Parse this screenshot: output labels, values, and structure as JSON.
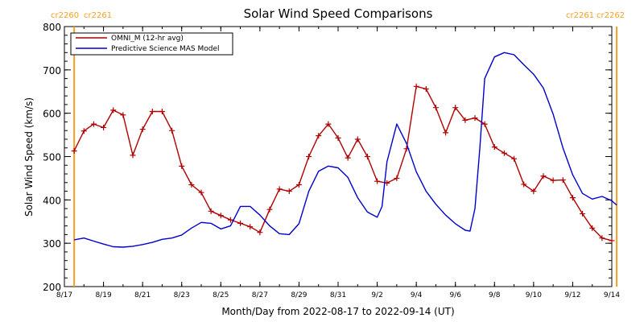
{
  "chart_data": {
    "type": "line",
    "title": "Solar Wind Speed Comparisons",
    "xlabel": "Month/Day from 2022-08-17 to 2022-09-14 (UT)",
    "ylabel": "Solar Wind Speed (km/s)",
    "xlim": [
      "2022-08-17",
      "2022-09-14"
    ],
    "ylim": [
      200,
      800
    ],
    "x_ticks": [
      "8/17",
      "8/19",
      "8/21",
      "8/23",
      "8/25",
      "8/27",
      "8/29",
      "8/31",
      "9/2",
      "9/4",
      "9/6",
      "9/8",
      "9/10",
      "9/12",
      "9/14"
    ],
    "y_ticks": [
      200,
      300,
      400,
      500,
      600,
      700,
      800
    ],
    "legend_position": "top-left",
    "colors": {
      "omni": "#b00000",
      "model": "#0000cc",
      "carrington": "#f5a020"
    },
    "carrington_markers": [
      {
        "date": "2022-08-17T12:00",
        "left_label": "cr2260",
        "right_label": "cr2261"
      },
      {
        "date": "2022-09-14T06:00",
        "left_label": "cr2261",
        "right_label": "cr2262"
      }
    ],
    "series": [
      {
        "name": "OMNI_M (12-hr avg)",
        "color": "#b00000",
        "marker": "plus",
        "points": [
          [
            "2022-08-17T12:00",
            513
          ],
          [
            "2022-08-18T00:00",
            559
          ],
          [
            "2022-08-18T12:00",
            575
          ],
          [
            "2022-08-19T00:00",
            567
          ],
          [
            "2022-08-19T12:00",
            607
          ],
          [
            "2022-08-20T00:00",
            596
          ],
          [
            "2022-08-20T12:00",
            503
          ],
          [
            "2022-08-21T00:00",
            563
          ],
          [
            "2022-08-21T12:00",
            604
          ],
          [
            "2022-08-22T00:00",
            604
          ],
          [
            "2022-08-22T12:00",
            560
          ],
          [
            "2022-08-23T00:00",
            478
          ],
          [
            "2022-08-23T12:00",
            435
          ],
          [
            "2022-08-24T00:00",
            417
          ],
          [
            "2022-08-24T12:00",
            374
          ],
          [
            "2022-08-25T00:00",
            364
          ],
          [
            "2022-08-25T12:00",
            354
          ],
          [
            "2022-08-26T00:00",
            346
          ],
          [
            "2022-08-26T12:00",
            338
          ],
          [
            "2022-08-27T00:00",
            325
          ],
          [
            "2022-08-27T12:00",
            378
          ],
          [
            "2022-08-28T00:00",
            425
          ],
          [
            "2022-08-28T12:00",
            420
          ],
          [
            "2022-08-29T00:00",
            435
          ],
          [
            "2022-08-29T12:00",
            500
          ],
          [
            "2022-08-30T00:00",
            548
          ],
          [
            "2022-08-30T12:00",
            575
          ],
          [
            "2022-08-31T00:00",
            543
          ],
          [
            "2022-08-31T12:00",
            497
          ],
          [
            "2022-09-01T00:00",
            540
          ],
          [
            "2022-09-01T12:00",
            500
          ],
          [
            "2022-09-02T00:00",
            443
          ],
          [
            "2022-09-02T12:00",
            439
          ],
          [
            "2022-09-03T00:00",
            450
          ],
          [
            "2022-09-03T12:00",
            518
          ],
          [
            "2022-09-04T00:00",
            662
          ],
          [
            "2022-09-04T12:00",
            656
          ],
          [
            "2022-09-05T00:00",
            613
          ],
          [
            "2022-09-05T12:00",
            555
          ],
          [
            "2022-09-06T00:00",
            613
          ],
          [
            "2022-09-06T12:00",
            584
          ],
          [
            "2022-09-07T00:00",
            589
          ],
          [
            "2022-09-07T12:00",
            575
          ],
          [
            "2022-09-08T00:00",
            522
          ],
          [
            "2022-09-08T12:00",
            508
          ],
          [
            "2022-09-09T00:00",
            495
          ],
          [
            "2022-09-09T12:00",
            436
          ],
          [
            "2022-09-10T00:00",
            420
          ],
          [
            "2022-09-10T12:00",
            455
          ],
          [
            "2022-09-11T00:00",
            445
          ],
          [
            "2022-09-11T12:00",
            446
          ],
          [
            "2022-09-12T00:00",
            405
          ],
          [
            "2022-09-12T12:00",
            368
          ],
          [
            "2022-09-13T00:00",
            335
          ],
          [
            "2022-09-13T12:00",
            312
          ],
          [
            "2022-09-14T00:00",
            306
          ]
        ]
      },
      {
        "name": "Predictive Science MAS Model",
        "color": "#0000cc",
        "marker": "none",
        "points": [
          [
            "2022-08-17T12:00",
            308
          ],
          [
            "2022-08-18T00:00",
            312
          ],
          [
            "2022-08-18T12:00",
            305
          ],
          [
            "2022-08-19T00:00",
            298
          ],
          [
            "2022-08-19T12:00",
            292
          ],
          [
            "2022-08-20T00:00",
            291
          ],
          [
            "2022-08-20T12:00",
            293
          ],
          [
            "2022-08-21T00:00",
            297
          ],
          [
            "2022-08-21T12:00",
            302
          ],
          [
            "2022-08-22T00:00",
            309
          ],
          [
            "2022-08-22T12:00",
            312
          ],
          [
            "2022-08-23T00:00",
            319
          ],
          [
            "2022-08-23T12:00",
            335
          ],
          [
            "2022-08-24T00:00",
            348
          ],
          [
            "2022-08-24T12:00",
            346
          ],
          [
            "2022-08-25T00:00",
            333
          ],
          [
            "2022-08-25T12:00",
            340
          ],
          [
            "2022-08-26T00:00",
            385
          ],
          [
            "2022-08-26T12:00",
            385
          ],
          [
            "2022-08-27T00:00",
            365
          ],
          [
            "2022-08-27T12:00",
            340
          ],
          [
            "2022-08-28T00:00",
            322
          ],
          [
            "2022-08-28T12:00",
            320
          ],
          [
            "2022-08-29T00:00",
            345
          ],
          [
            "2022-08-29T12:00",
            420
          ],
          [
            "2022-08-30T00:00",
            466
          ],
          [
            "2022-08-30T12:00",
            478
          ],
          [
            "2022-08-31T00:00",
            474
          ],
          [
            "2022-08-31T12:00",
            452
          ],
          [
            "2022-09-01T00:00",
            405
          ],
          [
            "2022-09-01T12:00",
            372
          ],
          [
            "2022-09-02T00:00",
            360
          ],
          [
            "2022-09-02T06:00",
            385
          ],
          [
            "2022-09-02T12:00",
            488
          ],
          [
            "2022-09-03T00:00",
            575
          ],
          [
            "2022-09-03T12:00",
            530
          ],
          [
            "2022-09-04T00:00",
            465
          ],
          [
            "2022-09-04T12:00",
            420
          ],
          [
            "2022-09-05T00:00",
            390
          ],
          [
            "2022-09-05T12:00",
            365
          ],
          [
            "2022-09-06T00:00",
            345
          ],
          [
            "2022-09-06T12:00",
            330
          ],
          [
            "2022-09-06T18:00",
            328
          ],
          [
            "2022-09-07T00:00",
            380
          ],
          [
            "2022-09-07T06:00",
            520
          ],
          [
            "2022-09-07T12:00",
            680
          ],
          [
            "2022-09-08T00:00",
            730
          ],
          [
            "2022-09-08T12:00",
            740
          ],
          [
            "2022-09-09T00:00",
            735
          ],
          [
            "2022-09-09T12:00",
            712
          ],
          [
            "2022-09-10T00:00",
            690
          ],
          [
            "2022-09-10T12:00",
            658
          ],
          [
            "2022-09-11T00:00",
            598
          ],
          [
            "2022-09-11T12:00",
            520
          ],
          [
            "2022-09-12T00:00",
            458
          ],
          [
            "2022-09-12T12:00",
            415
          ],
          [
            "2022-09-13T00:00",
            402
          ],
          [
            "2022-09-13T12:00",
            408
          ],
          [
            "2022-09-14T00:00",
            398
          ],
          [
            "2022-09-14T06:00",
            388
          ]
        ]
      }
    ]
  }
}
